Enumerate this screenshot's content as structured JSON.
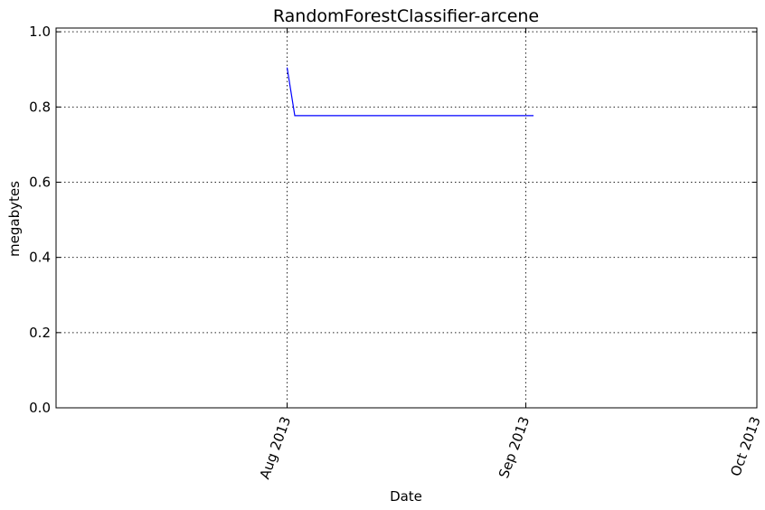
{
  "chart_data": {
    "type": "line",
    "title": "RandomForestClassifier-arcene",
    "xlabel": "Date",
    "ylabel": "megabytes",
    "x_ticks": [
      "Aug 2013",
      "Sep 2013",
      "Oct 2013"
    ],
    "y_ticks": [
      "0.0",
      "0.2",
      "0.4",
      "0.6",
      "0.8",
      "1.0"
    ],
    "xlim": [
      "2013-07-02",
      "2013-10-01"
    ],
    "ylim": [
      0,
      1.01
    ],
    "grid": true,
    "series": [
      {
        "color": "#0000ff",
        "x": [
          "2013-08-01",
          "2013-08-02",
          "2013-09-02"
        ],
        "y": [
          0.905,
          0.777,
          0.777
        ]
      }
    ]
  },
  "colors": {
    "line": "#0000ff",
    "axes": "#000000",
    "background": "#ffffff"
  }
}
